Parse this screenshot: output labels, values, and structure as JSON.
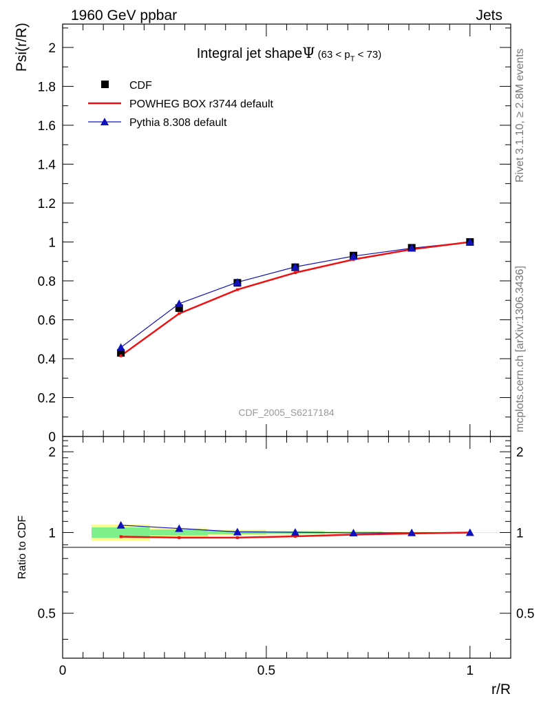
{
  "header": {
    "left_label": "1960 GeV ppbar",
    "right_label": "Jets"
  },
  "side_labels": {
    "top": "Rivet 3.1.10, ≥ 2.8M events",
    "bottom": "mcplots.cern.ch [arXiv:1306.3436]"
  },
  "watermark": "CDF_2005_S6217184",
  "chart_data": [
    {
      "type": "scatter",
      "panel": "main",
      "title": "Integral jet shape",
      "title_symbol": "Ψ",
      "title_range": {
        "prefix": "(63 < p",
        "subscript": "T",
        "suffix": " < 73)"
      },
      "ylabel": "Psi(r/R)",
      "xlim": [
        0,
        1.1
      ],
      "ylim": [
        0,
        2.12
      ],
      "y_ticks": [
        "0",
        "0.2",
        "0.4",
        "0.6",
        "0.8",
        "1",
        "1.2",
        "1.4",
        "1.6",
        "1.8",
        "2"
      ],
      "legend_position": "top-left",
      "x": [
        0.143,
        0.286,
        0.429,
        0.571,
        0.714,
        0.857,
        1.0
      ],
      "series": [
        {
          "name": "CDF",
          "style": "markers",
          "color": "#000000",
          "values": [
            0.43,
            0.66,
            0.79,
            0.87,
            0.93,
            0.97,
            1.0
          ]
        },
        {
          "name": "POWHEG BOX r3744 default",
          "style": "line",
          "color": "#ee1111",
          "values": [
            0.415,
            0.632,
            0.755,
            0.842,
            0.91,
            0.962,
            1.0
          ]
        },
        {
          "name": "Pythia 8.308 default",
          "style": "line-triangles",
          "color": "#1111bb",
          "values": [
            0.458,
            0.683,
            0.793,
            0.872,
            0.927,
            0.968,
            1.0
          ]
        }
      ]
    },
    {
      "type": "line",
      "panel": "ratio",
      "ylabel": "Ratio to CDF",
      "xlabel": "r/R",
      "xlim": [
        0,
        1.1
      ],
      "ylim": [
        0.34,
        2.28
      ],
      "y_ticks": [
        "0.5",
        "1",
        "2"
      ],
      "x_ticks": [
        "0",
        "0.5",
        "1"
      ],
      "x": [
        0.143,
        0.286,
        0.429,
        0.571,
        0.714,
        0.857,
        1.0
      ],
      "bands": [
        {
          "x_range": [
            0.071,
            0.214
          ],
          "inner": [
            0.955,
            1.045
          ],
          "outer": [
            0.93,
            1.07
          ]
        },
        {
          "x_range": [
            0.214,
            0.357
          ],
          "inner": [
            0.975,
            1.025
          ],
          "outer": [
            0.96,
            1.04
          ]
        },
        {
          "x_range": [
            0.357,
            0.5
          ],
          "inner": [
            0.985,
            1.015
          ],
          "outer": [
            0.975,
            1.025
          ]
        },
        {
          "x_range": [
            0.5,
            0.643
          ],
          "inner": [
            0.99,
            1.01
          ],
          "outer": [
            0.983,
            1.017
          ]
        },
        {
          "x_range": [
            0.643,
            0.786
          ],
          "inner": [
            0.994,
            1.006
          ],
          "outer": [
            0.99,
            1.01
          ]
        },
        {
          "x_range": [
            0.786,
            0.929
          ],
          "inner": [
            0.997,
            1.003
          ],
          "outer": [
            0.995,
            1.005
          ]
        },
        {
          "x_range": [
            0.929,
            1.071
          ],
          "inner": [
            0.999,
            1.001
          ],
          "outer": [
            0.998,
            1.002
          ]
        }
      ],
      "series": [
        {
          "name": "POWHEG BOX r3744 default",
          "color": "#ee1111",
          "values": [
            0.965,
            0.957,
            0.957,
            0.968,
            0.982,
            0.992,
            1.0
          ]
        },
        {
          "name": "Pythia 8.308 default",
          "color": "#1111bb",
          "values": [
            1.065,
            1.035,
            1.005,
            1.002,
            0.997,
            0.998,
            1.0
          ]
        }
      ]
    }
  ],
  "colors": {
    "band_inner": "#7fef8c",
    "band_outer": "#fafa8e",
    "side_text": "#777777",
    "watermark": "#999999"
  }
}
